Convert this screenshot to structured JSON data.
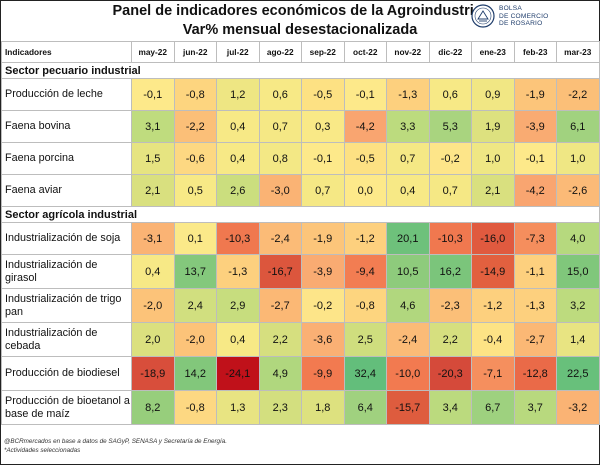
{
  "header": {
    "title": "Panel de indicadores económicos de la Agroindustria*",
    "subtitle": "Var% mensual desestacionalizada",
    "logo_text": [
      "BOLSA",
      "DE COMERCIO",
      "DE ROSARIO"
    ]
  },
  "table": {
    "corner_label": "Indicadores",
    "months": [
      "may-22",
      "jun-22",
      "jul-22",
      "ago-22",
      "sep-22",
      "oct-22",
      "nov-22",
      "dic-22",
      "ene-23",
      "feb-23",
      "mar-23"
    ],
    "sections": [
      {
        "title": "Sector pecuario industrial",
        "rows": [
          {
            "label": "Producción de leche",
            "values": [
              "-0,1",
              "-0,8",
              "1,2",
              "0,6",
              "-0,5",
              "-0,1",
              "-1,3",
              "0,6",
              "0,9",
              "-1,9",
              "-2,2"
            ],
            "colors": [
              "#fde98a",
              "#fdd57f",
              "#eee683",
              "#f7e986",
              "#fde183",
              "#fde98a",
              "#fdd07e",
              "#f7e986",
              "#f1e784",
              "#fcc57a",
              "#fbbf78"
            ]
          },
          {
            "label": "Faena bovina",
            "values": [
              "3,1",
              "-2,2",
              "0,4",
              "0,7",
              "0,3",
              "-4,2",
              "3,3",
              "5,3",
              "1,9",
              "-3,9",
              "6,1"
            ],
            "colors": [
              "#bfdc7e",
              "#fbbf78",
              "#f7e986",
              "#f5e885",
              "#f9e987",
              "#f9a570",
              "#bcdb7e",
              "#a9d47f",
              "#dde17f",
              "#f9ab72",
              "#a1d27f"
            ]
          },
          {
            "label": "Faena porcina",
            "values": [
              "1,5",
              "-0,6",
              "0,4",
              "0,8",
              "-0,1",
              "-0,5",
              "0,7",
              "-0,2",
              "1,0",
              "-0,1",
              "1,0"
            ],
            "colors": [
              "#e6e481",
              "#fdd882",
              "#f7e986",
              "#f3e885",
              "#fde98a",
              "#fde183",
              "#f5e885",
              "#fde589",
              "#efe784",
              "#fde98a",
              "#efe784"
            ]
          },
          {
            "label": "Faena aviar",
            "values": [
              "2,1",
              "0,5",
              "2,6",
              "-3,0",
              "0,7",
              "0,0",
              "0,4",
              "0,7",
              "2,1",
              "-4,2",
              "-2,6"
            ],
            "colors": [
              "#d9e07f",
              "#f7e986",
              "#cbde7e",
              "#fab374",
              "#f5e885",
              "#fde98a",
              "#f7e986",
              "#f5e885",
              "#d9e07f",
              "#f9a570",
              "#fbba77"
            ]
          }
        ]
      },
      {
        "title": "Sector agrícola industrial",
        "rows": [
          {
            "label": "Industrialización de soja",
            "values": [
              "-3,1",
              "0,1",
              "-10,3",
              "-2,4",
              "-1,9",
              "-1,2",
              "20,1",
              "-10,3",
              "-16,0",
              "-7,3",
              "4,0"
            ],
            "colors": [
              "#fab374",
              "#fbe989",
              "#f0784f",
              "#fbbb77",
              "#fcc57a",
              "#fdd07e",
              "#6ec17b",
              "#f0784f",
              "#e05a3f",
              "#f58e5d",
              "#b6d97e"
            ],
            "multiline": false
          },
          {
            "label": "Industrialización de girasol",
            "values": [
              "0,4",
              "13,7",
              "-1,3",
              "-16,7",
              "-3,9",
              "-9,4",
              "10,5",
              "16,2",
              "-14,9",
              "-1,1",
              "15,0"
            ],
            "colors": [
              "#f7e986",
              "#84c87c",
              "#fdd07e",
              "#dc563d",
              "#f9ab72",
              "#f27d52",
              "#8ecb7c",
              "#7bc57b",
              "#e2603f",
              "#fdd07e",
              "#80c77b"
            ],
            "multiline": true
          },
          {
            "label": "Industrialización de trigo pan",
            "values": [
              "-2,0",
              "2,4",
              "2,9",
              "-2,7",
              "-0,2",
              "-0,8",
              "4,6",
              "-2,3",
              "-1,2",
              "-1,3",
              "3,2"
            ],
            "colors": [
              "#fcc379",
              "#d1df7f",
              "#c7dd7e",
              "#fbb875",
              "#fde589",
              "#fdd57f",
              "#b1d77e",
              "#fbbf78",
              "#fdd07e",
              "#fdd07e",
              "#bddb7e"
            ],
            "multiline": true
          },
          {
            "label": "Industrialización de cebada",
            "values": [
              "2,0",
              "-2,0",
              "0,4",
              "2,2",
              "-3,6",
              "2,5",
              "-2,4",
              "2,2",
              "-0,4",
              "-2,7",
              "1,4"
            ],
            "colors": [
              "#dbe07f",
              "#fcc379",
              "#f7e986",
              "#d6df7f",
              "#fab074",
              "#cfde7e",
              "#fbbb77",
              "#d6df7f",
              "#fde385",
              "#fbb875",
              "#e8e482"
            ],
            "multiline": true
          },
          {
            "label": "Producción de biodiesel",
            "values": [
              "-18,9",
              "14,2",
              "-24,1",
              "4,9",
              "-9,9",
              "32,4",
              "-10,0",
              "-20,3",
              "-7,1",
              "-12,8",
              "22,5"
            ],
            "colors": [
              "#d84e3b",
              "#82c77b",
              "#c0111a",
              "#b0d77e",
              "#f27a50",
              "#63be7b",
              "#f27a50",
              "#d54a3a",
              "#f58f5e",
              "#ea6a48",
              "#68c07b"
            ],
            "multiline": false
          },
          {
            "label": "Producción de bioetanol a base de maíz",
            "values": [
              "8,2",
              "-0,8",
              "1,3",
              "2,3",
              "1,8",
              "6,4",
              "-15,7",
              "3,4",
              "6,7",
              "3,7",
              "-3,2"
            ],
            "colors": [
              "#97ce7c",
              "#fdd882",
              "#e8e482",
              "#d3df7f",
              "#dde17f",
              "#a0d17f",
              "#de5c3e",
              "#bbda7e",
              "#9ed17f",
              "#b8d97e",
              "#fab374"
            ],
            "multiline": true
          }
        ]
      }
    ]
  },
  "footer": {
    "source": "@BCRmercados en base a datos de SAGyP, SENASA y Secretaría de Energía.",
    "note": "*Actividades seleccionadas"
  }
}
